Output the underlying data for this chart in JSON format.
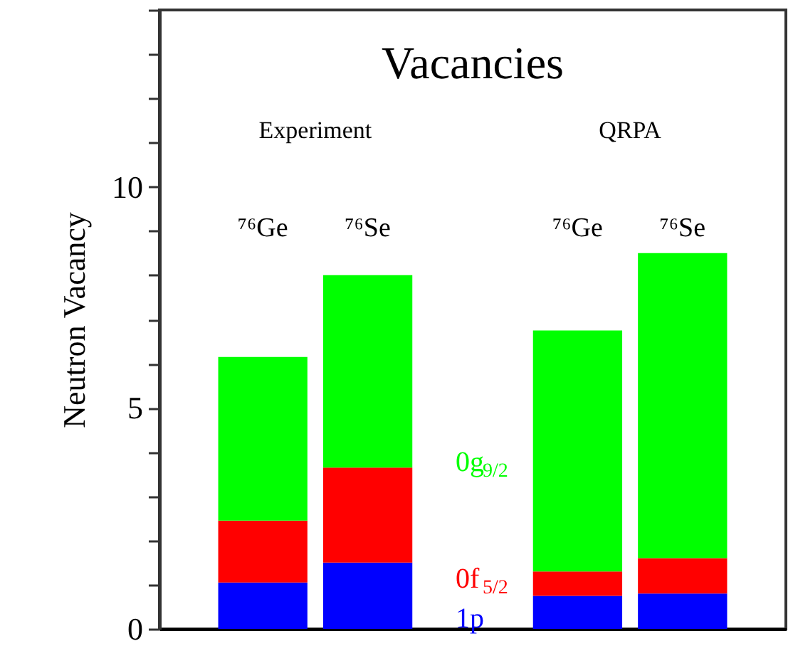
{
  "chart_data": {
    "type": "bar",
    "title": "Vacancies",
    "ylabel": "Neutron Vacancy",
    "categories": [
      "⁷⁶Ge",
      "⁷⁶Se",
      null,
      "⁷⁶Ge",
      "⁷⁶Se"
    ],
    "stacked": true,
    "legend": false,
    "grid": false,
    "tick_labels": "y",
    "ylim": [
      0,
      14
    ],
    "yticks": [
      0,
      {
        "value": 1,
        "label": null
      },
      {
        "value": 2,
        "label": null
      },
      {
        "value": 3,
        "label": null
      },
      {
        "value": 4,
        "label": null
      },
      5,
      {
        "value": 6,
        "label": null
      },
      {
        "value": 7,
        "label": null
      },
      {
        "value": 8,
        "label": null
      },
      {
        "value": 9,
        "label": null
      },
      10,
      {
        "value": 11,
        "label": null
      },
      {
        "value": 12,
        "label": null
      },
      {
        "value": 13,
        "label": null
      },
      {
        "value": 14,
        "label": null
      }
    ],
    "annotations": [
      "Experiment",
      "QRPA"
    ],
    "series": [
      {
        "name": "1p",
        "color": "#0000ff",
        "values": [
          1.05,
          1.5,
          null,
          0.75,
          0.8
        ]
      },
      {
        "name": "0f$_{5/2}$",
        "color": "#ff0000",
        "values": [
          1.4,
          2.15,
          null,
          0.55,
          0.8
        ]
      },
      {
        "name": "0g$_{9/2}$",
        "color": "#00ff00",
        "values": [
          3.7,
          4.35,
          null,
          5.45,
          6.9
        ]
      }
    ]
  }
}
